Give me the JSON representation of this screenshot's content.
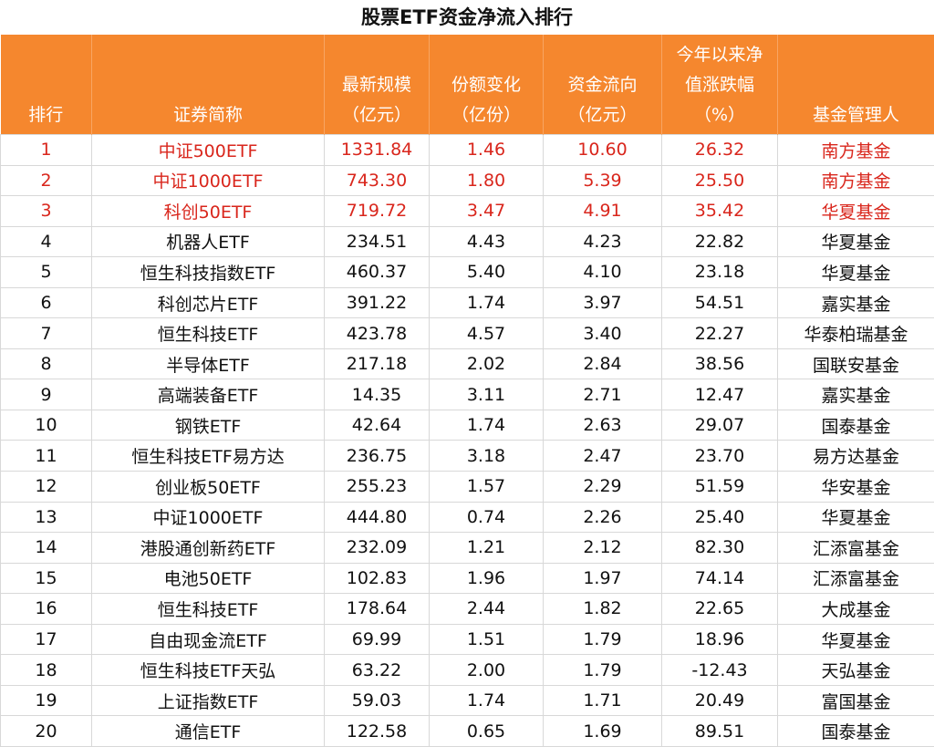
{
  "title": "股票ETF资金净流入排行",
  "table": {
    "header": [
      [
        "排行"
      ],
      [
        "证券简称"
      ],
      [
        "最新规模",
        "（亿元）"
      ],
      [
        "份额变化",
        "（亿份）"
      ],
      [
        "资金流向",
        "（亿元）"
      ],
      [
        "今年以来净",
        "值涨跌幅",
        "（%）"
      ],
      [
        "基金管理人"
      ]
    ],
    "rows": [
      [
        "1",
        "中证500ETF",
        "1331.84",
        "1.46",
        "10.60",
        "26.32",
        "南方基金"
      ],
      [
        "2",
        "中证1000ETF",
        "743.30",
        "1.80",
        "5.39",
        "25.50",
        "南方基金"
      ],
      [
        "3",
        "科创50ETF",
        "719.72",
        "3.47",
        "4.91",
        "35.42",
        "华夏基金"
      ],
      [
        "4",
        "机器人ETF",
        "234.51",
        "4.43",
        "4.23",
        "22.82",
        "华夏基金"
      ],
      [
        "5",
        "恒生科技指数ETF",
        "460.37",
        "5.40",
        "4.10",
        "23.18",
        "华夏基金"
      ],
      [
        "6",
        "科创芯片ETF",
        "391.22",
        "1.74",
        "3.97",
        "54.51",
        "嘉实基金"
      ],
      [
        "7",
        "恒生科技ETF",
        "423.78",
        "4.57",
        "3.40",
        "22.27",
        "华泰柏瑞基金"
      ],
      [
        "8",
        "半导体ETF",
        "217.18",
        "2.02",
        "2.84",
        "38.56",
        "国联安基金"
      ],
      [
        "9",
        "高端装备ETF",
        "14.35",
        "3.11",
        "2.71",
        "12.47",
        "嘉实基金"
      ],
      [
        "10",
        "钢铁ETF",
        "42.64",
        "1.74",
        "2.63",
        "29.07",
        "国泰基金"
      ],
      [
        "11",
        "恒生科技ETF易方达",
        "236.75",
        "3.18",
        "2.47",
        "23.70",
        "易方达基金"
      ],
      [
        "12",
        "创业板50ETF",
        "255.23",
        "1.57",
        "2.29",
        "51.59",
        "华安基金"
      ],
      [
        "13",
        "中证1000ETF",
        "444.80",
        "0.74",
        "2.26",
        "25.40",
        "华夏基金"
      ],
      [
        "14",
        "港股通创新药ETF",
        "232.09",
        "1.21",
        "2.12",
        "82.30",
        "汇添富基金"
      ],
      [
        "15",
        "电池50ETF",
        "102.83",
        "1.96",
        "1.97",
        "74.14",
        "汇添富基金"
      ],
      [
        "16",
        "恒生科技ETF",
        "178.64",
        "2.44",
        "1.82",
        "22.65",
        "大成基金"
      ],
      [
        "17",
        "自由现金流ETF",
        "69.99",
        "1.51",
        "1.79",
        "18.96",
        "华夏基金"
      ],
      [
        "18",
        "恒生科技ETF天弘",
        "63.22",
        "2.00",
        "1.79",
        "-12.43",
        "天弘基金"
      ],
      [
        "19",
        "上证指数ETF",
        "59.03",
        "1.74",
        "1.71",
        "20.49",
        "富国基金"
      ],
      [
        "20",
        "通信ETF",
        "122.58",
        "0.65",
        "1.69",
        "89.51",
        "国泰基金"
      ]
    ]
  }
}
